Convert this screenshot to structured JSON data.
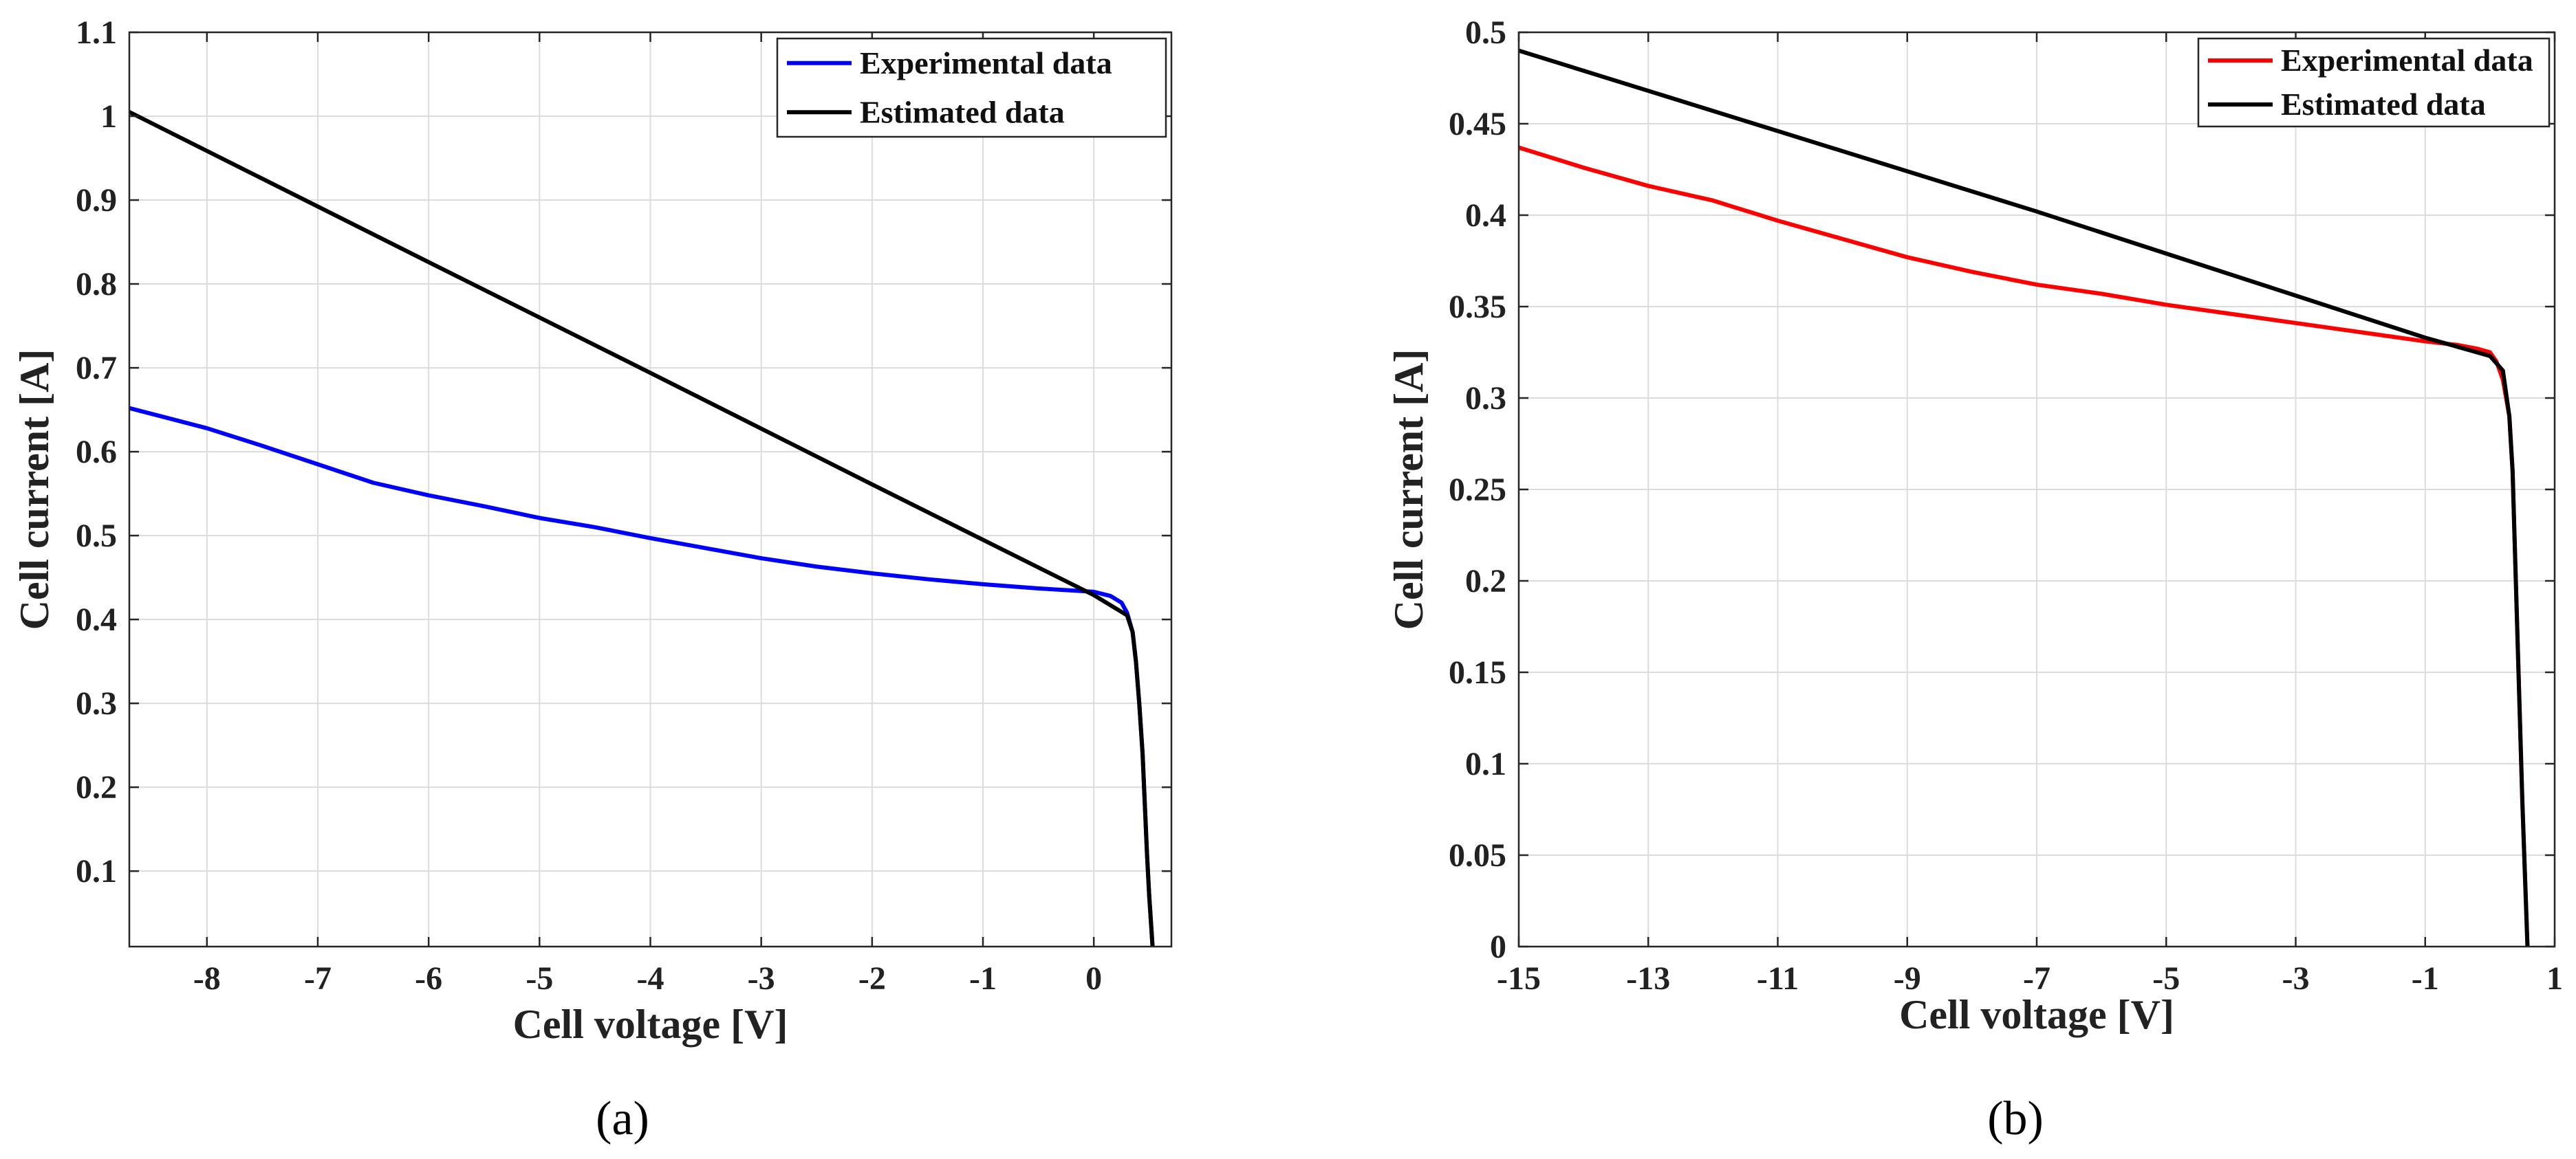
{
  "chart_data": [
    {
      "type": "line",
      "panel_label": "(a)",
      "xlabel": "Cell voltage [V]",
      "ylabel": "Cell current [A]",
      "xlim": [
        -8.7,
        0.7
      ],
      "ylim": [
        0.01,
        1.1
      ],
      "xticks": [
        -8,
        -7,
        -6,
        -5,
        -4,
        -3,
        -2,
        -1,
        0
      ],
      "xtick_labels": [
        "-8",
        "-7",
        "-6",
        "-5",
        "-4",
        "-3",
        "-2",
        "-1",
        "0"
      ],
      "yticks": [
        0.1,
        0.2,
        0.3,
        0.4,
        0.5,
        0.6,
        0.7,
        0.8,
        0.9,
        1,
        1.1
      ],
      "ytick_labels": [
        "0.1",
        "0.2",
        "0.3",
        "0.4",
        "0.5",
        "0.6",
        "0.7",
        "0.8",
        "0.9",
        "1",
        "1.1"
      ],
      "grid": true,
      "legend_position": "top-right",
      "series": [
        {
          "name": "Experimental data",
          "color": "#0000ff",
          "x": [
            -8.7,
            -8.0,
            -7.5,
            -7.0,
            -6.5,
            -6.0,
            -5.5,
            -5.0,
            -4.5,
            -4.0,
            -3.5,
            -3.0,
            -2.5,
            -2.0,
            -1.5,
            -1.0,
            -0.5,
            0.0,
            0.15,
            0.25,
            0.3,
            0.35,
            0.38,
            0.41,
            0.44,
            0.46,
            0.48,
            0.5,
            0.52,
            0.53
          ],
          "y": [
            0.652,
            0.628,
            0.607,
            0.585,
            0.563,
            0.548,
            0.535,
            0.521,
            0.51,
            0.497,
            0.485,
            0.473,
            0.463,
            0.455,
            0.448,
            0.442,
            0.437,
            0.433,
            0.428,
            0.42,
            0.408,
            0.385,
            0.35,
            0.3,
            0.24,
            0.18,
            0.12,
            0.07,
            0.03,
            0.01
          ]
        },
        {
          "name": "Estimated data",
          "color": "#000000",
          "x": [
            -8.7,
            -6.0,
            -4.0,
            -2.0,
            0.0,
            0.3,
            0.35,
            0.38,
            0.41,
            0.44,
            0.46,
            0.48,
            0.5,
            0.52,
            0.53
          ],
          "y": [
            1.005,
            0.826,
            0.694,
            0.561,
            0.429,
            0.405,
            0.385,
            0.35,
            0.3,
            0.24,
            0.18,
            0.12,
            0.07,
            0.03,
            0.01
          ]
        }
      ]
    },
    {
      "type": "line",
      "panel_label": "(b)",
      "xlabel": "Cell voltage [V]",
      "ylabel": "Cell current [A]",
      "xlim": [
        -15,
        1
      ],
      "ylim": [
        0,
        0.5
      ],
      "xticks": [
        -15,
        -13,
        -11,
        -9,
        -7,
        -5,
        -3,
        -1,
        1
      ],
      "xtick_labels": [
        "-15",
        "-13",
        "-11",
        "-9",
        "-7",
        "-5",
        "-3",
        "-1",
        "1"
      ],
      "yticks": [
        0,
        0.05,
        0.1,
        0.15,
        0.2,
        0.25,
        0.3,
        0.35,
        0.4,
        0.45,
        0.5
      ],
      "ytick_labels": [
        "0",
        "0.05",
        "0.1",
        "0.15",
        "0.2",
        "0.25",
        "0.3",
        "0.35",
        "0.4",
        "0.45",
        "0.5"
      ],
      "grid": true,
      "legend_position": "top-right",
      "series": [
        {
          "name": "Experimental data",
          "color": "#ff0000",
          "x": [
            -15,
            -14,
            -13,
            -12,
            -11,
            -10,
            -9,
            -8,
            -7,
            -6,
            -5,
            -4,
            -3,
            -2,
            -1,
            -0.5,
            -0.2,
            0.0,
            0.1,
            0.2,
            0.3,
            0.35,
            0.4,
            0.45,
            0.5,
            0.55,
            0.58
          ],
          "y": [
            0.437,
            0.426,
            0.416,
            0.408,
            0.397,
            0.387,
            0.377,
            0.369,
            0.362,
            0.357,
            0.351,
            0.346,
            0.341,
            0.336,
            0.331,
            0.329,
            0.327,
            0.325,
            0.32,
            0.31,
            0.29,
            0.26,
            0.2,
            0.14,
            0.08,
            0.03,
            0.0
          ]
        },
        {
          "name": "Estimated data",
          "color": "#000000",
          "x": [
            -15,
            -11,
            -7,
            -3,
            -1,
            0.0,
            0.2,
            0.3,
            0.35,
            0.4,
            0.45,
            0.5,
            0.55,
            0.58
          ],
          "y": [
            0.49,
            0.446,
            0.402,
            0.356,
            0.333,
            0.323,
            0.315,
            0.29,
            0.26,
            0.2,
            0.14,
            0.08,
            0.03,
            0.0
          ]
        }
      ]
    }
  ]
}
